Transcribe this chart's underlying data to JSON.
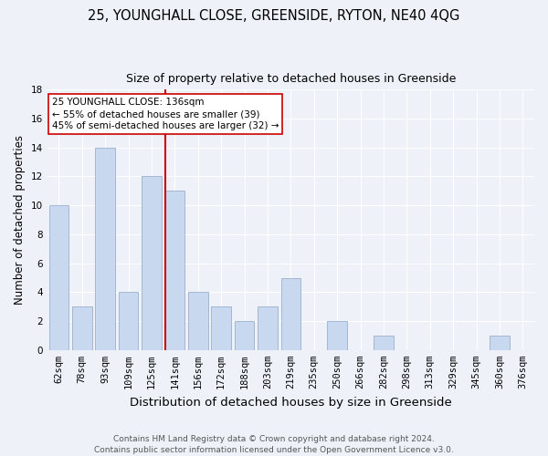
{
  "title": "25, YOUNGHALL CLOSE, GREENSIDE, RYTON, NE40 4QG",
  "subtitle": "Size of property relative to detached houses in Greenside",
  "xlabel": "Distribution of detached houses by size in Greenside",
  "ylabel": "Number of detached properties",
  "categories": [
    "62sqm",
    "78sqm",
    "93sqm",
    "109sqm",
    "125sqm",
    "141sqm",
    "156sqm",
    "172sqm",
    "188sqm",
    "203sqm",
    "219sqm",
    "235sqm",
    "250sqm",
    "266sqm",
    "282sqm",
    "298sqm",
    "313sqm",
    "329sqm",
    "345sqm",
    "360sqm",
    "376sqm"
  ],
  "values": [
    10,
    3,
    14,
    4,
    12,
    11,
    4,
    3,
    2,
    3,
    5,
    0,
    2,
    0,
    1,
    0,
    0,
    0,
    0,
    1,
    0
  ],
  "bar_color": "#c8d8ee",
  "bar_edge_color": "#9ab0cc",
  "vline_index": 5,
  "vline_color": "#cc0000",
  "annotation_line1": "25 YOUNGHALL CLOSE: 136sqm",
  "annotation_line2": "← 55% of detached houses are smaller (39)",
  "annotation_line3": "45% of semi-detached houses are larger (32) →",
  "annotation_box_color": "#ffffff",
  "annotation_box_edge": "#cc0000",
  "ylim": [
    0,
    18
  ],
  "yticks": [
    0,
    2,
    4,
    6,
    8,
    10,
    12,
    14,
    16,
    18
  ],
  "footer": "Contains HM Land Registry data © Crown copyright and database right 2024.\nContains public sector information licensed under the Open Government Licence v3.0.",
  "title_fontsize": 10.5,
  "subtitle_fontsize": 9,
  "ylabel_fontsize": 8.5,
  "xlabel_fontsize": 9.5,
  "tick_fontsize": 7.5,
  "annotation_fontsize": 7.5,
  "footer_fontsize": 6.5,
  "background_color": "#eef2f8"
}
